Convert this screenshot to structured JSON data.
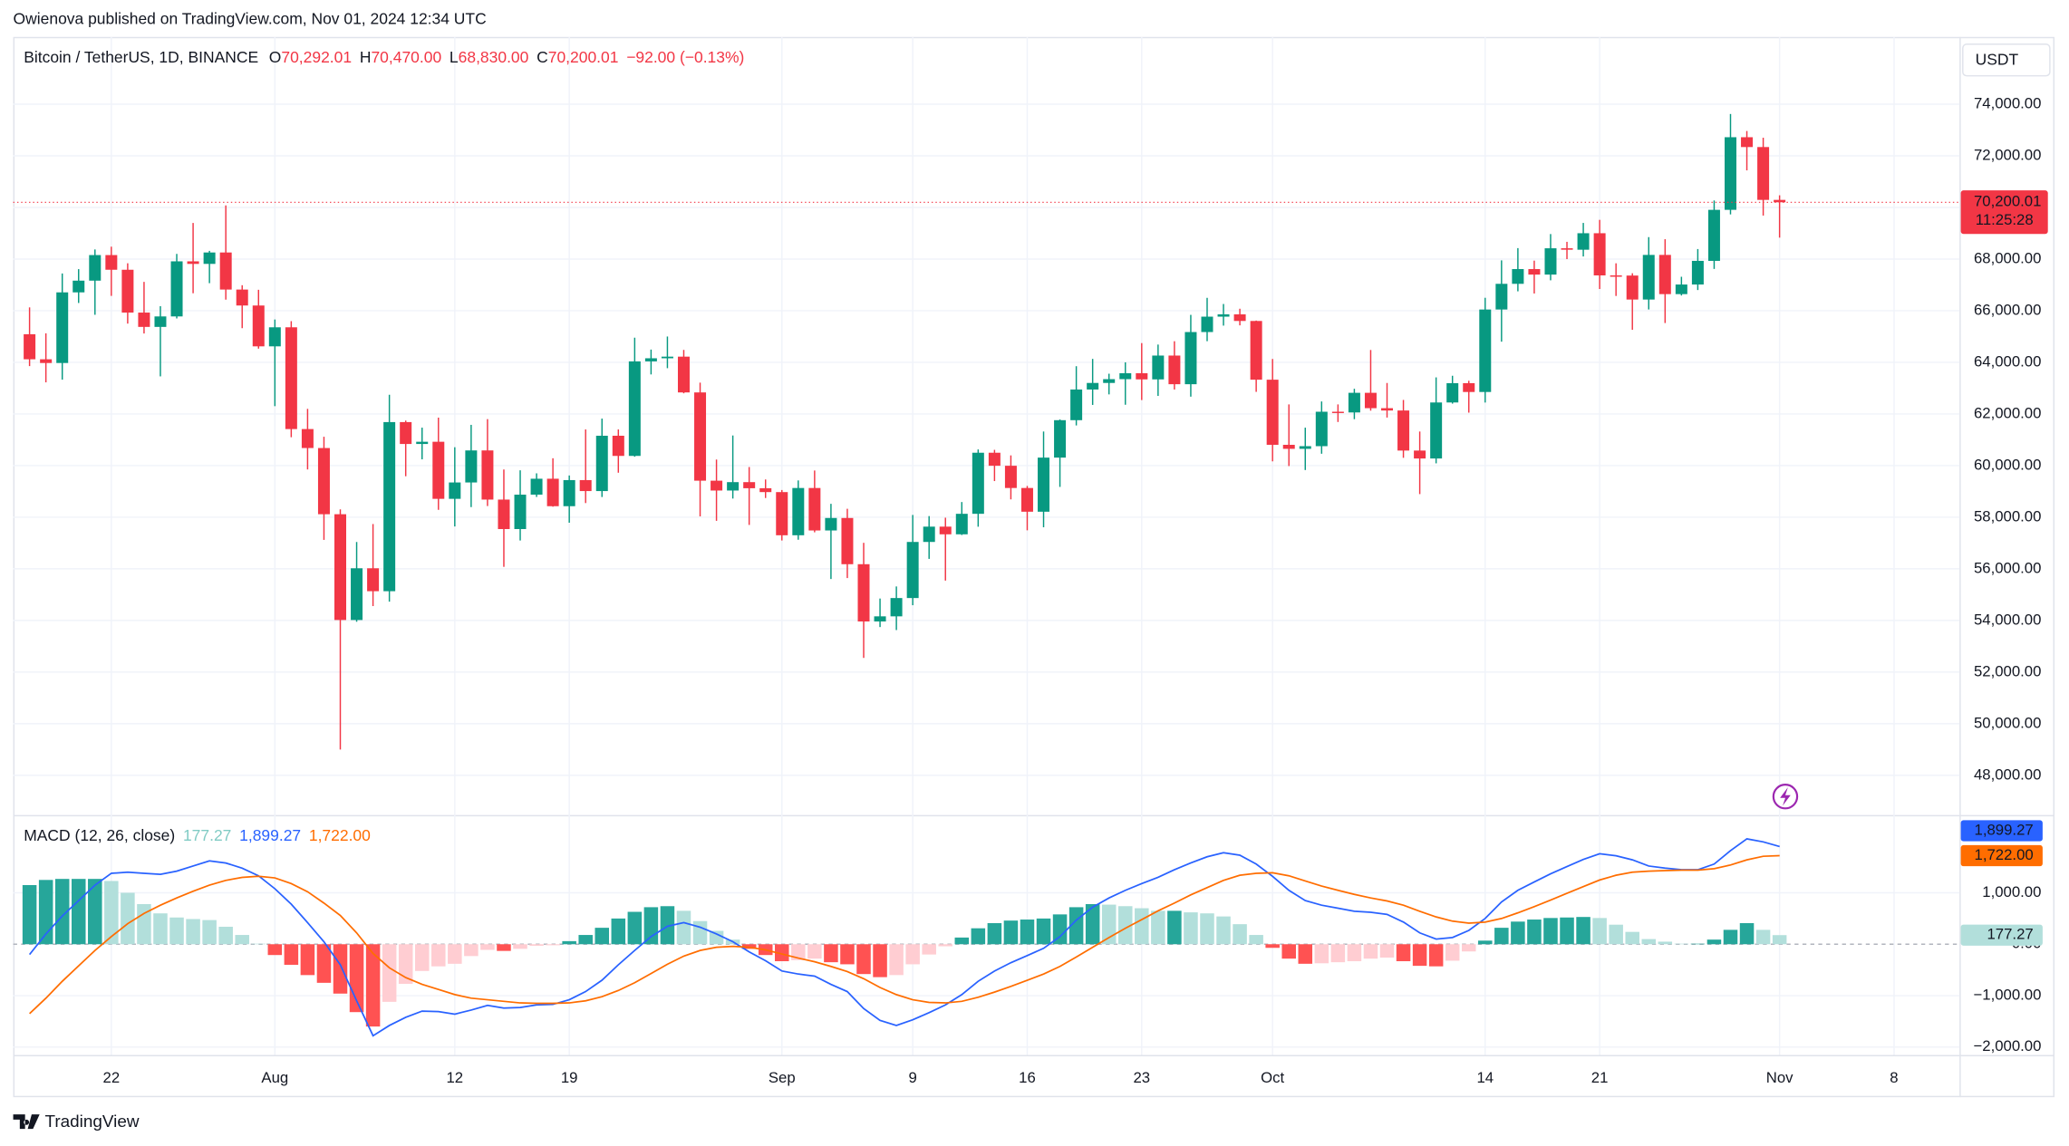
{
  "header": {
    "publisher": "Owienova published on TradingView.com, Nov 01, 2024 12:34 UTC",
    "symbol": "Bitcoin / TetherUS, 1D, BINANCE",
    "ohlc": [
      {
        "label": "O",
        "value": "70,292.01"
      },
      {
        "label": "H",
        "value": "70,470.00"
      },
      {
        "label": "L",
        "value": "68,830.00"
      },
      {
        "label": "C",
        "value": "70,200.01"
      }
    ],
    "change": "−92.00 (−0.13%)",
    "currency": "USDT",
    "last_price": "70,200.01",
    "countdown": "11:25:28",
    "logo": "TradingView"
  },
  "chart_data": [
    {
      "type": "candlestick",
      "up_color": "#089981",
      "down_color": "#f23645",
      "grid": true,
      "x": [
        "2024-07-17",
        "2024-07-18",
        "2024-07-19",
        "2024-07-20",
        "2024-07-21",
        "2024-07-22",
        "2024-07-23",
        "2024-07-24",
        "2024-07-25",
        "2024-07-26",
        "2024-07-27",
        "2024-07-28",
        "2024-07-29",
        "2024-07-30",
        "2024-07-31",
        "2024-08-01",
        "2024-08-02",
        "2024-08-03",
        "2024-08-04",
        "2024-08-05",
        "2024-08-06",
        "2024-08-07",
        "2024-08-08",
        "2024-08-09",
        "2024-08-10",
        "2024-08-11",
        "2024-08-12",
        "2024-08-13",
        "2024-08-14",
        "2024-08-15",
        "2024-08-16",
        "2024-08-17",
        "2024-08-18",
        "2024-08-19",
        "2024-08-20",
        "2024-08-21",
        "2024-08-22",
        "2024-08-23",
        "2024-08-24",
        "2024-08-25",
        "2024-08-26",
        "2024-08-27",
        "2024-08-28",
        "2024-08-29",
        "2024-08-30",
        "2024-08-31",
        "2024-09-01",
        "2024-09-02",
        "2024-09-03",
        "2024-09-04",
        "2024-09-05",
        "2024-09-06",
        "2024-09-07",
        "2024-09-08",
        "2024-09-09",
        "2024-09-10",
        "2024-09-11",
        "2024-09-12",
        "2024-09-13",
        "2024-09-14",
        "2024-09-15",
        "2024-09-16",
        "2024-09-17",
        "2024-09-18",
        "2024-09-19",
        "2024-09-20",
        "2024-09-21",
        "2024-09-22",
        "2024-09-23",
        "2024-09-24",
        "2024-09-25",
        "2024-09-26",
        "2024-09-27",
        "2024-09-28",
        "2024-09-29",
        "2024-09-30",
        "2024-10-01",
        "2024-10-02",
        "2024-10-03",
        "2024-10-04",
        "2024-10-05",
        "2024-10-06",
        "2024-10-07",
        "2024-10-08",
        "2024-10-09",
        "2024-10-10",
        "2024-10-11",
        "2024-10-12",
        "2024-10-13",
        "2024-10-14",
        "2024-10-15",
        "2024-10-16",
        "2024-10-17",
        "2024-10-18",
        "2024-10-19",
        "2024-10-20",
        "2024-10-21",
        "2024-10-22",
        "2024-10-23",
        "2024-10-24",
        "2024-10-25",
        "2024-10-26",
        "2024-10-27",
        "2024-10-28",
        "2024-10-29",
        "2024-10-30",
        "2024-10-31",
        "2024-11-01"
      ],
      "open": [
        65088,
        64118,
        63974,
        66710,
        67164,
        68155,
        67586,
        65927,
        65372,
        65778,
        67912,
        67813,
        68255,
        66819,
        66201,
        64619,
        65357,
        61415,
        60680,
        58116,
        54018,
        56022,
        55134,
        61685,
        60837,
        60923,
        58712,
        59346,
        60587,
        58683,
        57541,
        58874,
        59491,
        58427,
        59438,
        59013,
        61156,
        60375,
        64037,
        64157,
        64220,
        62834,
        59415,
        59034,
        59359,
        59123,
        58973,
        57301,
        59132,
        57487,
        57970,
        56180,
        53962,
        54160,
        54869,
        57042,
        57635,
        57338,
        58132,
        60498,
        59993,
        59132,
        58213,
        60309,
        61759,
        62947,
        63201,
        63348,
        63578,
        63339,
        64262,
        63152,
        65173,
        65769,
        65858,
        65602,
        63327,
        60805,
        60649,
        60752,
        62086,
        62058,
        62819,
        62224,
        62134,
        60582,
        60275,
        62445,
        63193,
        62851,
        66046,
        67041,
        67612,
        67399,
        68418,
        68362,
        69001,
        67367,
        67361,
        66432,
        68161,
        66642,
        67014,
        67930,
        69907,
        72720,
        72339,
        70292.01
      ],
      "high": [
        66128,
        65123,
        67442,
        67610,
        68372,
        68480,
        67837,
        67116,
        66175,
        68200,
        69399,
        68318,
        70079,
        66987,
        66810,
        65659,
        65596,
        62198,
        61117,
        58305,
        57040,
        57736,
        62745,
        61744,
        61470,
        61858,
        60711,
        61578,
        61800,
        59849,
        59817,
        59700,
        60284,
        59617,
        61400,
        61820,
        61400,
        64955,
        64494,
        65000,
        64481,
        63212,
        60234,
        61166,
        59944,
        59462,
        59054,
        59425,
        59809,
        58519,
        58327,
        57008,
        54850,
        55318,
        58088,
        58044,
        57981,
        58588,
        60625,
        60610,
        60395,
        59210,
        61320,
        61786,
        63850,
        64133,
        63559,
        64000,
        64745,
        64688,
        64817,
        65839,
        66498,
        66260,
        66076,
        65618,
        64130,
        62370,
        61469,
        62484,
        62370,
        62975,
        64478,
        63200,
        62543,
        61320,
        63417,
        63480,
        63285,
        66500,
        67950,
        68424,
        67939,
        68969,
        68668,
        69400,
        69519,
        67836,
        67451,
        68850,
        68769,
        67314,
        68388,
        70270,
        73620,
        72961,
        72700,
        70470
      ],
      "low": [
        63854,
        63224,
        63329,
        66299,
        65842,
        66574,
        65500,
        65117,
        63456,
        65700,
        66676,
        67066,
        66428,
        65323,
        64530,
        62302,
        61100,
        59850,
        57122,
        49000,
        53950,
        54558,
        54730,
        59587,
        60242,
        58286,
        57642,
        58392,
        58433,
        56078,
        57098,
        58785,
        58408,
        57787,
        58548,
        58783,
        59724,
        60342,
        63531,
        63773,
        62800,
        58034,
        57860,
        58723,
        57701,
        58744,
        57099,
        57128,
        57415,
        55606,
        55643,
        52550,
        53745,
        53629,
        54591,
        56386,
        55545,
        57311,
        57632,
        59400,
        58691,
        57493,
        57610,
        59174,
        61555,
        62350,
        62758,
        62357,
        62538,
        62700,
        62947,
        62670,
        64819,
        65422,
        65432,
        62856,
        60164,
        59981,
        59828,
        60459,
        61689,
        61798,
        62128,
        61860,
        60301,
        58895,
        60087,
        62400,
        62050,
        62442,
        64800,
        66750,
        66666,
        67177,
        67998,
        68100,
        66840,
        66571,
        65260,
        66048,
        65522,
        66588,
        66800,
        67618,
        69730,
        71436,
        69685,
        68830
      ],
      "close": [
        64118,
        63974,
        66710,
        67164,
        68155,
        67586,
        65927,
        65372,
        65778,
        67912,
        67813,
        68255,
        66819,
        66201,
        64619,
        65357,
        61415,
        60680,
        58116,
        54018,
        56022,
        55134,
        61685,
        60837,
        60923,
        58712,
        59346,
        60587,
        58683,
        57541,
        58874,
        59491,
        58427,
        59438,
        59013,
        61156,
        60375,
        64037,
        64157,
        64220,
        62834,
        59415,
        59034,
        59359,
        59123,
        58973,
        57301,
        59132,
        57487,
        57970,
        56180,
        53962,
        54160,
        54869,
        57042,
        57635,
        57338,
        58132,
        60498,
        59993,
        59132,
        58213,
        60309,
        61759,
        62947,
        63201,
        63348,
        63578,
        63339,
        64262,
        63152,
        65173,
        65769,
        65858,
        65602,
        63327,
        60805,
        60649,
        60752,
        62086,
        62058,
        62819,
        62224,
        62134,
        60582,
        60275,
        62445,
        63193,
        62851,
        66046,
        67041,
        67612,
        67399,
        68418,
        68362,
        69001,
        67367,
        67361,
        66432,
        68161,
        66642,
        67014,
        67930,
        69907,
        72720,
        72339,
        70292.01,
        70200.01
      ],
      "xlim": [
        "2024-07-16",
        "2024-11-12"
      ],
      "xticks": [
        {
          "value": "2024-07-22",
          "label": "22"
        },
        {
          "value": "2024-08-01",
          "label": "Aug"
        },
        {
          "value": "2024-08-12",
          "label": "12"
        },
        {
          "value": "2024-08-19",
          "label": "19"
        },
        {
          "value": "2024-09-01",
          "label": "Sep"
        },
        {
          "value": "2024-09-09",
          "label": "9"
        },
        {
          "value": "2024-09-16",
          "label": "16"
        },
        {
          "value": "2024-09-23",
          "label": "23"
        },
        {
          "value": "2024-10-01",
          "label": "Oct"
        },
        {
          "value": "2024-10-14",
          "label": "14"
        },
        {
          "value": "2024-10-21",
          "label": "21"
        },
        {
          "value": "2024-11-01",
          "label": "Nov"
        },
        {
          "value": "2024-11-08",
          "label": "8"
        }
      ],
      "ylim": [
        46465,
        76605
      ],
      "yticks": [
        {
          "value": 48000,
          "label": "48,000.00"
        },
        {
          "value": 50000,
          "label": "50,000.00"
        },
        {
          "value": 52000,
          "label": "52,000.00"
        },
        {
          "value": 54000,
          "label": "54,000.00"
        },
        {
          "value": 56000,
          "label": "56,000.00"
        },
        {
          "value": 58000,
          "label": "58,000.00"
        },
        {
          "value": 60000,
          "label": "60,000.00"
        },
        {
          "value": 62000,
          "label": "62,000.00"
        },
        {
          "value": 64000,
          "label": "64,000.00"
        },
        {
          "value": 66000,
          "label": "66,000.00"
        },
        {
          "value": 68000,
          "label": "68,000.00"
        },
        {
          "value": 70000,
          "label": "70,000.00"
        },
        {
          "value": 72000,
          "label": "72,000.00"
        },
        {
          "value": 74000,
          "label": "74,000.00"
        }
      ]
    },
    {
      "type": "macd",
      "title": "MACD (12, 26, close)",
      "ylim": [
        -2154,
        2513
      ],
      "yticks": [
        {
          "value": 1000,
          "label": "1,000.00"
        },
        {
          "value": 0,
          "label": "0.00"
        },
        {
          "value": -1000,
          "label": "−1,000.00"
        },
        {
          "value": -2000,
          "label": "−2,000.00"
        }
      ],
      "hist_colors": {
        "up_grow": "#26a69a",
        "up_fall": "#b2dfdb",
        "down_grow": "#ff5252",
        "down_fall": "#ffcdd2"
      },
      "series": [
        {
          "name": "histogram",
          "color": "#b2dfdb",
          "value_label": "177.27",
          "values": [
            1150,
            1250,
            1270,
            1270,
            1270,
            1230,
            1000,
            780,
            600,
            520,
            490,
            470,
            340,
            180,
            10,
            -210,
            -400,
            -600,
            -750,
            -960,
            -1320,
            -1600,
            -1120,
            -770,
            -520,
            -430,
            -380,
            -230,
            -110,
            -130,
            -90,
            -30,
            -20,
            60,
            180,
            320,
            500,
            630,
            720,
            740,
            650,
            450,
            260,
            90,
            -90,
            -210,
            -330,
            -310,
            -280,
            -350,
            -390,
            -580,
            -640,
            -600,
            -390,
            -200,
            -40,
            130,
            310,
            410,
            460,
            480,
            500,
            580,
            720,
            780,
            770,
            740,
            700,
            650,
            650,
            620,
            600,
            540,
            390,
            180,
            -70,
            -280,
            -380,
            -370,
            -350,
            -330,
            -280,
            -260,
            -330,
            -420,
            -430,
            -320,
            -140,
            70,
            320,
            440,
            480,
            510,
            520,
            530,
            510,
            380,
            240,
            100,
            50,
            10,
            10,
            90,
            280,
            410,
            280,
            177.27
          ]
        },
        {
          "name": "macd",
          "color": "#2962ff",
          "value_label": "1,899.27",
          "values": [
            -200,
            200,
            550,
            850,
            1150,
            1380,
            1400,
            1380,
            1360,
            1420,
            1520,
            1620,
            1580,
            1480,
            1330,
            1080,
            780,
            420,
            50,
            -400,
            -1100,
            -1780,
            -1580,
            -1420,
            -1300,
            -1310,
            -1360,
            -1280,
            -1190,
            -1240,
            -1230,
            -1180,
            -1170,
            -1080,
            -920,
            -700,
            -400,
            -120,
            150,
            350,
            420,
            330,
            200,
            50,
            -150,
            -320,
            -520,
            -580,
            -620,
            -780,
            -920,
            -1250,
            -1480,
            -1580,
            -1470,
            -1330,
            -1180,
            -980,
            -720,
            -520,
            -360,
            -220,
            -80,
            150,
            470,
            720,
            900,
            1050,
            1180,
            1300,
            1450,
            1580,
            1700,
            1780,
            1730,
            1560,
            1320,
            1050,
            850,
            760,
            700,
            640,
            620,
            580,
            430,
            220,
            100,
            130,
            270,
            500,
            820,
            1050,
            1210,
            1370,
            1510,
            1650,
            1760,
            1720,
            1640,
            1520,
            1480,
            1450,
            1450,
            1560,
            1820,
            2050,
            1990,
            1899.27
          ]
        },
        {
          "name": "signal",
          "color": "#ff6d00",
          "value_label": "1,722.00",
          "values": [
            -1350,
            -1050,
            -720,
            -420,
            -120,
            150,
            400,
            600,
            760,
            900,
            1030,
            1150,
            1240,
            1300,
            1320,
            1290,
            1180,
            1020,
            800,
            560,
            220,
            -180,
            -460,
            -650,
            -780,
            -880,
            -980,
            -1050,
            -1080,
            -1110,
            -1140,
            -1150,
            -1150,
            -1140,
            -1100,
            -1020,
            -900,
            -750,
            -570,
            -390,
            -230,
            -120,
            -60,
            -40,
            -60,
            -110,
            -190,
            -270,
            -340,
            -430,
            -530,
            -670,
            -840,
            -980,
            -1080,
            -1130,
            -1140,
            -1110,
            -1030,
            -930,
            -820,
            -700,
            -580,
            -430,
            -250,
            -60,
            130,
            310,
            480,
            650,
            800,
            960,
            1100,
            1240,
            1340,
            1380,
            1390,
            1330,
            1230,
            1130,
            1050,
            970,
            900,
            840,
            760,
            640,
            530,
            450,
            410,
            430,
            500,
            610,
            730,
            860,
            990,
            1120,
            1250,
            1340,
            1400,
            1420,
            1430,
            1440,
            1440,
            1470,
            1540,
            1640,
            1710,
            1722.0
          ]
        }
      ]
    }
  ]
}
